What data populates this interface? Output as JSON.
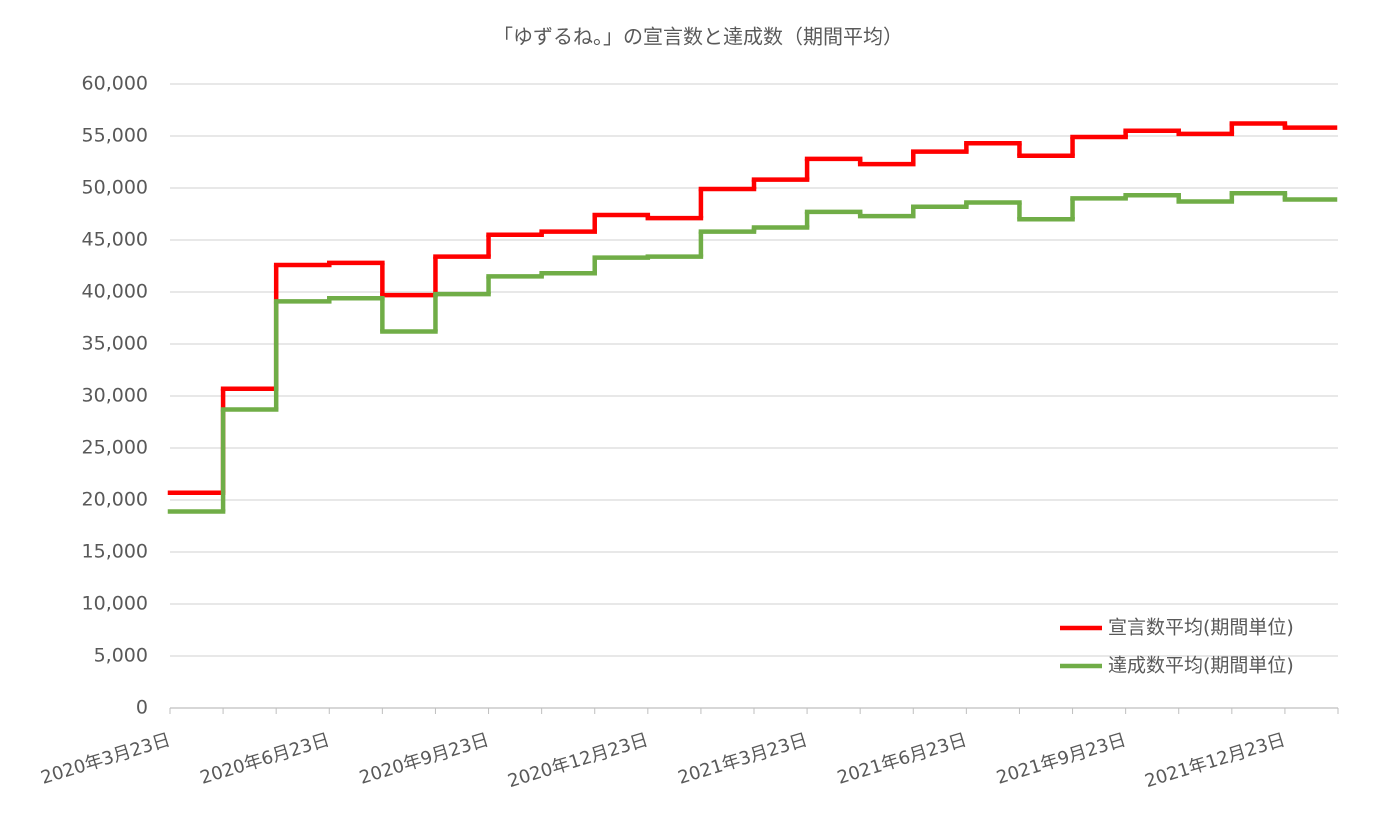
{
  "chart_data": {
    "type": "step",
    "title": "「ゆずるね。」の宣言数と達成数（期間平均）",
    "categories": [
      "2020年3月23日",
      null,
      null,
      "2020年6月23日",
      null,
      null,
      "2020年9月23日",
      null,
      null,
      "2020年12月23日",
      null,
      null,
      "2021年3月23日",
      null,
      null,
      "2021年6月23日",
      null,
      null,
      "2021年9月23日",
      null,
      null,
      "2021年12月23日"
    ],
    "series": [
      {
        "name": "宣言数平均(期間単位)",
        "color": "#ff0000",
        "values": [
          20700,
          30700,
          42600,
          42800,
          39700,
          43400,
          45500,
          45800,
          47400,
          47100,
          49900,
          50800,
          52800,
          52300,
          53500,
          54300,
          53100,
          54900,
          55500,
          55200,
          56200,
          55800
        ]
      },
      {
        "name": "達成数平均(期間単位)",
        "color": "#70ad47",
        "values": [
          18900,
          28700,
          39100,
          39400,
          36200,
          39800,
          41500,
          41800,
          43300,
          43400,
          45800,
          46200,
          47700,
          47300,
          48200,
          48600,
          47000,
          49000,
          49300,
          48700,
          49500,
          48900
        ]
      }
    ],
    "ylim": [
      0,
      60000
    ],
    "yticks": [
      0,
      {
        "value": 5000,
        "label": "5,000"
      },
      {
        "value": 10000,
        "label": "10,000"
      },
      {
        "value": 15000,
        "label": "15,000"
      },
      {
        "value": 20000,
        "label": "20,000"
      },
      {
        "value": 25000,
        "label": "25,000"
      },
      {
        "value": 30000,
        "label": "30,000"
      },
      {
        "value": 35000,
        "label": "35,000"
      },
      {
        "value": 40000,
        "label": "40,000"
      },
      {
        "value": 45000,
        "label": "45,000"
      },
      {
        "value": 50000,
        "label": "50,000"
      },
      {
        "value": 55000,
        "label": "55,000"
      },
      {
        "value": 60000,
        "label": "60,000"
      }
    ],
    "grid": true,
    "legend": "lower right"
  }
}
